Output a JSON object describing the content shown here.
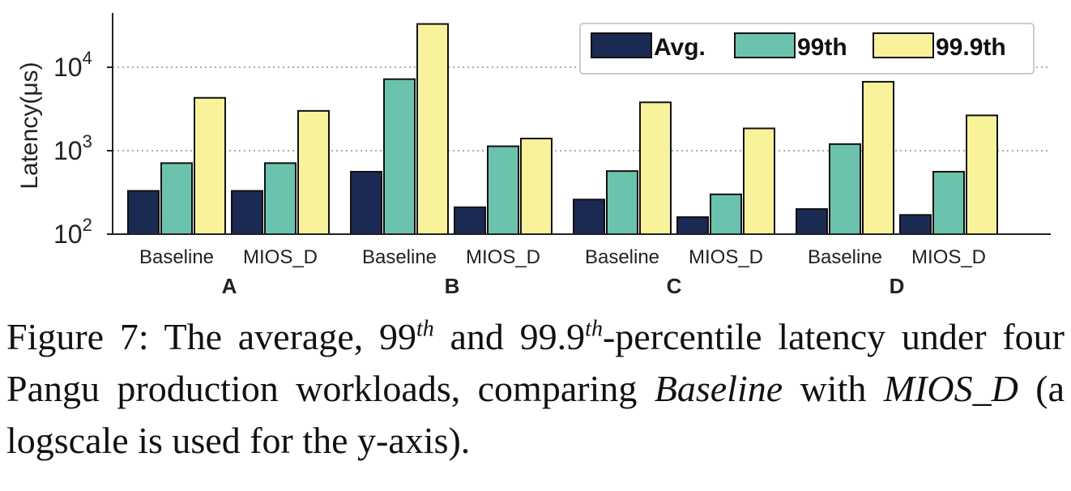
{
  "chart_data": {
    "type": "bar",
    "ylabel": "Latency(μs)",
    "yscale": "log",
    "ylim": [
      100,
      40000
    ],
    "yticks": [
      {
        "value": 100,
        "base": "10",
        "exp": "2"
      },
      {
        "value": 1000,
        "base": "10",
        "exp": "3"
      },
      {
        "value": 10000,
        "base": "10",
        "exp": "4"
      }
    ],
    "grid": "horizontal dotted at major ticks",
    "legend_position": "top-right",
    "groups": [
      "A",
      "B",
      "C",
      "D"
    ],
    "categories": [
      "Baseline",
      "MIOS_D",
      "Baseline",
      "MIOS_D",
      "Baseline",
      "MIOS_D",
      "Baseline",
      "MIOS_D"
    ],
    "series": [
      {
        "name": "Avg.",
        "color": "#1b2a52",
        "values": [
          330,
          330,
          560,
          210,
          260,
          160,
          200,
          170
        ]
      },
      {
        "name": "99th",
        "color": "#6cc3ad",
        "values": [
          710,
          710,
          7200,
          1130,
          570,
          300,
          1200,
          560
        ]
      },
      {
        "name": "99.9th",
        "color": "#f8f29b",
        "values": [
          4300,
          3000,
          33000,
          1400,
          3800,
          1850,
          6700,
          2650
        ]
      }
    ]
  },
  "caption": {
    "prefix": "Figure 7: The average, 99",
    "sup1": "th",
    "mid1": " and 99.9",
    "sup2": "th",
    "mid2": "-percentile latency under four Pangu production workloads, comparing ",
    "italic1": "Baseline",
    "mid3": " with ",
    "italic2": "MIOS_D",
    "suffix": " (a logscale is used for the y-axis)."
  }
}
